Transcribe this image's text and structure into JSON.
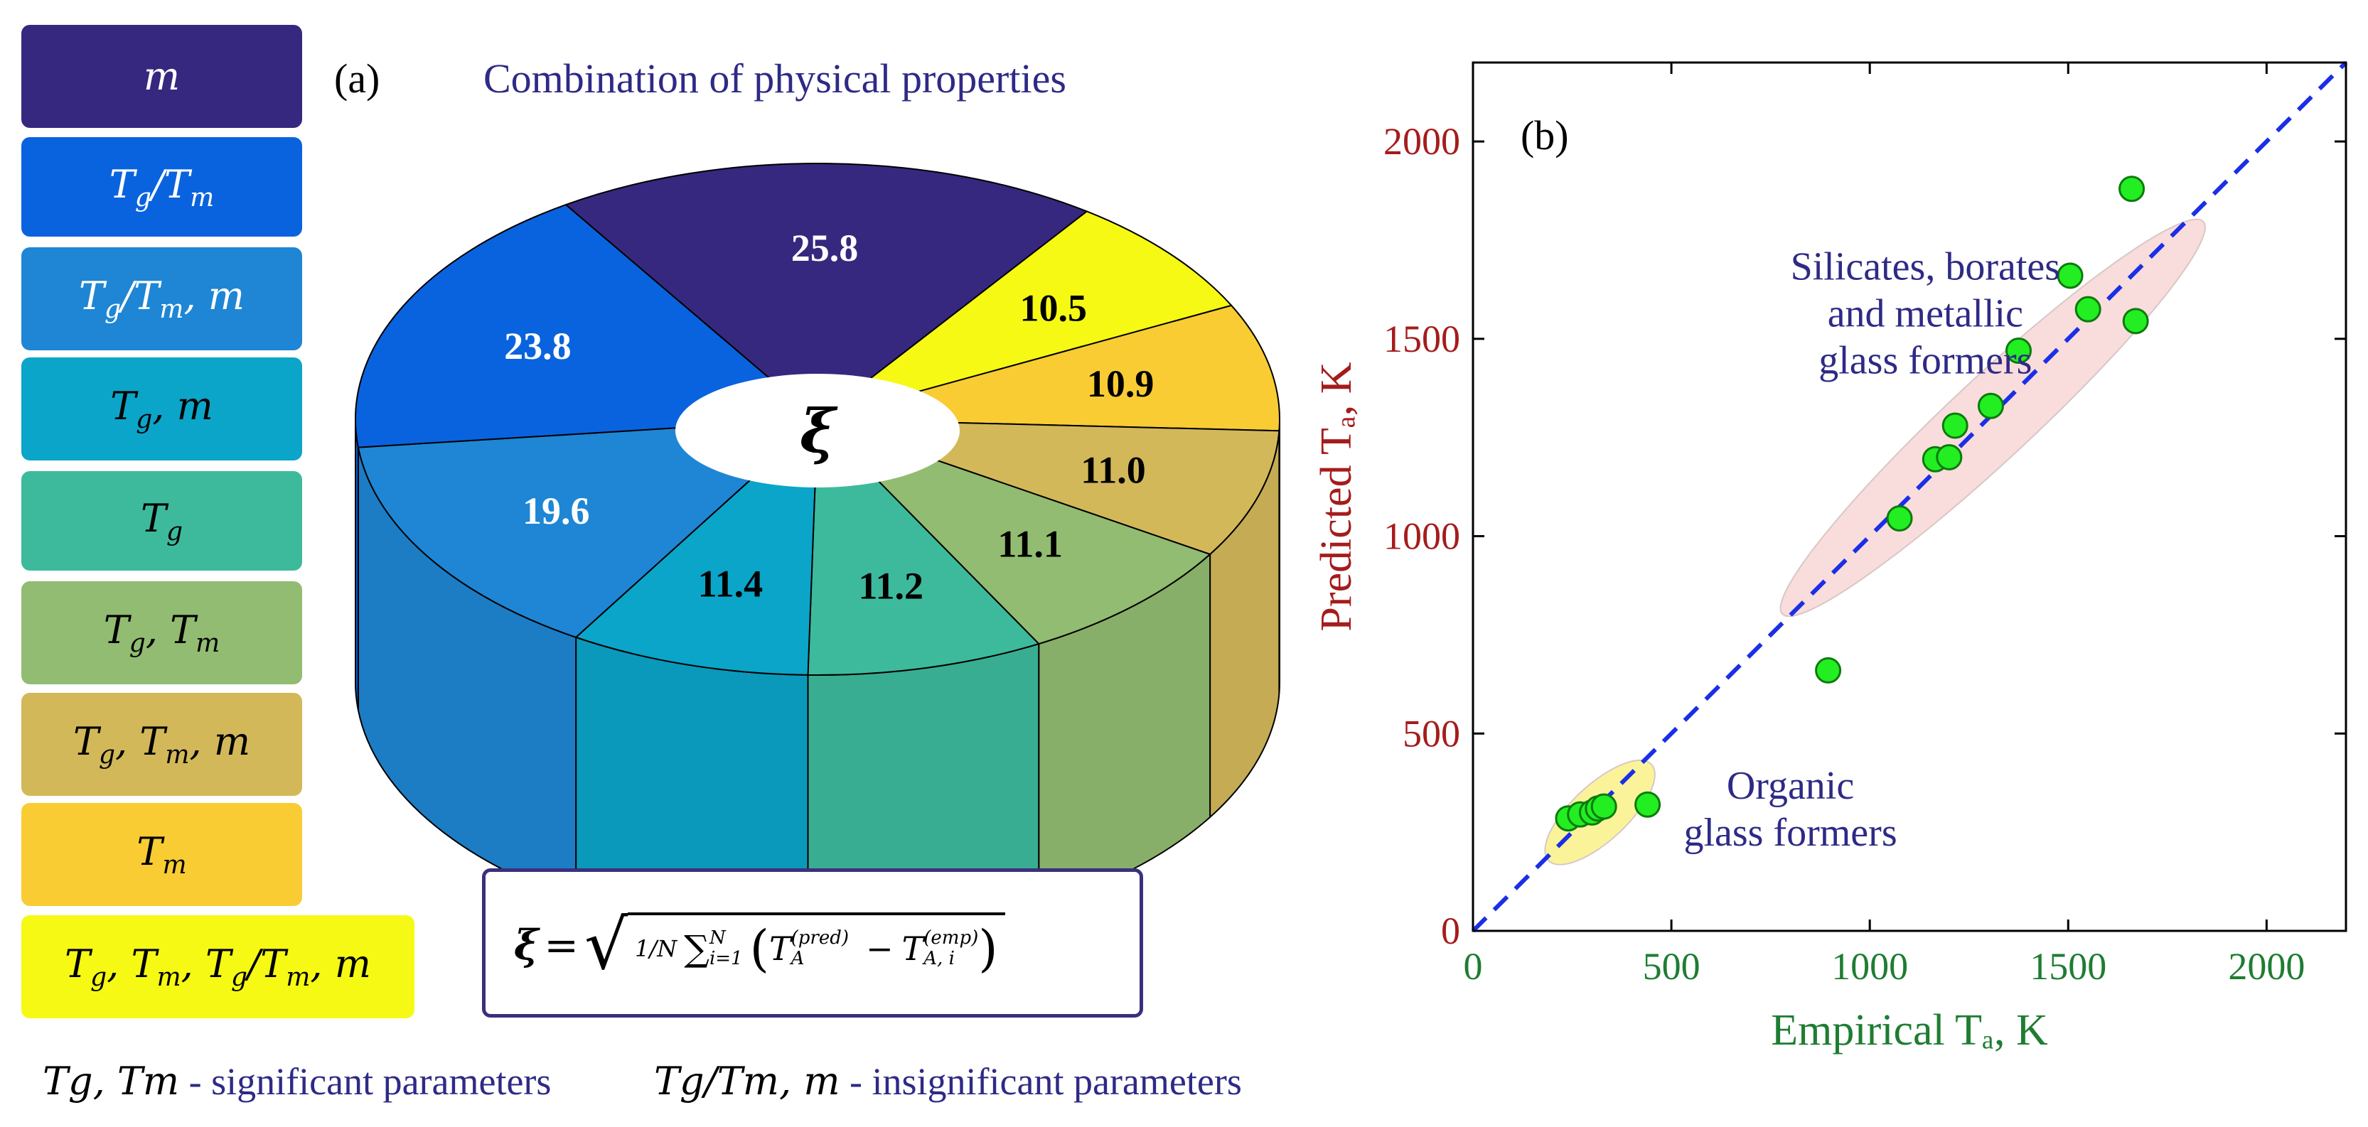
{
  "panel_a": {
    "label": "(a)",
    "title": "Combination of physical properties",
    "center_symbol": "ξ",
    "formula": {
      "lhs": "ξ",
      "eq": "=",
      "frac": "1/N",
      "sum": "∑",
      "sum_sub": "i=1",
      "sum_sup": "N",
      "term1": "T",
      "term1_sub": "A",
      "term1_sup": "(pred)",
      "minus": "−",
      "term2": "T",
      "term2_sub": "A, i",
      "term2_sup": "(emp)"
    },
    "legend": [
      {
        "label": "m",
        "color": "#36287f"
      },
      {
        "label": "Tg/Tm",
        "color": "#0a63de"
      },
      {
        "label": "Tg/Tm, m",
        "color": "#1e86d4"
      },
      {
        "label": "Tg, m",
        "color": "#0ba5c9"
      },
      {
        "label": "Tg",
        "color": "#3dba9c"
      },
      {
        "label": "Tg, Tm",
        "color": "#92bc71"
      },
      {
        "label": "Tg, Tm, m",
        "color": "#d3b85a"
      },
      {
        "label": "Tm",
        "color": "#f9cc33"
      },
      {
        "label": "Tg, Tm, Tg/Tm, m",
        "color": "#f6f914"
      }
    ],
    "notes": {
      "significant_vars": "Tg, Tm",
      "significant_text": " - significant parameters",
      "insignificant_vars": "Tg/Tm, m",
      "insignificant_text": " - insignificant parameters"
    }
  },
  "chart_data": [
    {
      "type": "pie",
      "title": "Combination of physical properties",
      "center_label": "ξ",
      "categories": [
        "m",
        "Tg, Tm, Tg/Tm, m",
        "Tm",
        "Tg, Tm, m",
        "Tg, Tm",
        "Tg",
        "Tg, m",
        "Tg/Tm, m",
        "Tg/Tm"
      ],
      "values": [
        25.8,
        10.5,
        10.9,
        11.0,
        11.1,
        11.2,
        11.4,
        19.6,
        23.8
      ],
      "colors": [
        "#36287f",
        "#f6f914",
        "#f9cc33",
        "#d3b85a",
        "#92bc71",
        "#3dba9c",
        "#0ba5c9",
        "#1e86d4",
        "#0a63de"
      ],
      "label_colors": [
        "#ffffff",
        "#000000",
        "#000000",
        "#000000",
        "#000000",
        "#000000",
        "#000000",
        "#ffffff",
        "#ffffff"
      ]
    },
    {
      "type": "scatter",
      "label": "(b)",
      "xlabel": "Empirical T_A, K",
      "ylabel": "Predicted T_A, K",
      "xlim": [
        0,
        2200
      ],
      "ylim": [
        0,
        2200
      ],
      "xticks": [
        0,
        500,
        1000,
        1500,
        2000
      ],
      "yticks": [
        0,
        500,
        1000,
        1500,
        2000
      ],
      "reference_line": "y = x",
      "points": [
        {
          "x": 240,
          "y": 285
        },
        {
          "x": 270,
          "y": 295
        },
        {
          "x": 300,
          "y": 300
        },
        {
          "x": 315,
          "y": 310
        },
        {
          "x": 330,
          "y": 315
        },
        {
          "x": 440,
          "y": 320
        },
        {
          "x": 895,
          "y": 660
        },
        {
          "x": 1075,
          "y": 1045
        },
        {
          "x": 1165,
          "y": 1195
        },
        {
          "x": 1200,
          "y": 1200
        },
        {
          "x": 1215,
          "y": 1280
        },
        {
          "x": 1305,
          "y": 1330
        },
        {
          "x": 1375,
          "y": 1470
        },
        {
          "x": 1505,
          "y": 1660
        },
        {
          "x": 1550,
          "y": 1575
        },
        {
          "x": 1660,
          "y": 1880
        },
        {
          "x": 1670,
          "y": 1545
        }
      ],
      "groups": [
        {
          "name": "Silicates, borates and metallic glass formers",
          "lines": [
            "Silicates, borates",
            "and metallic",
            "glass formers"
          ],
          "fill": "#f9dcdc"
        },
        {
          "name": "Organic glass formers",
          "lines": [
            "Organic",
            "glass formers"
          ],
          "fill": "#faf39a"
        }
      ]
    }
  ]
}
